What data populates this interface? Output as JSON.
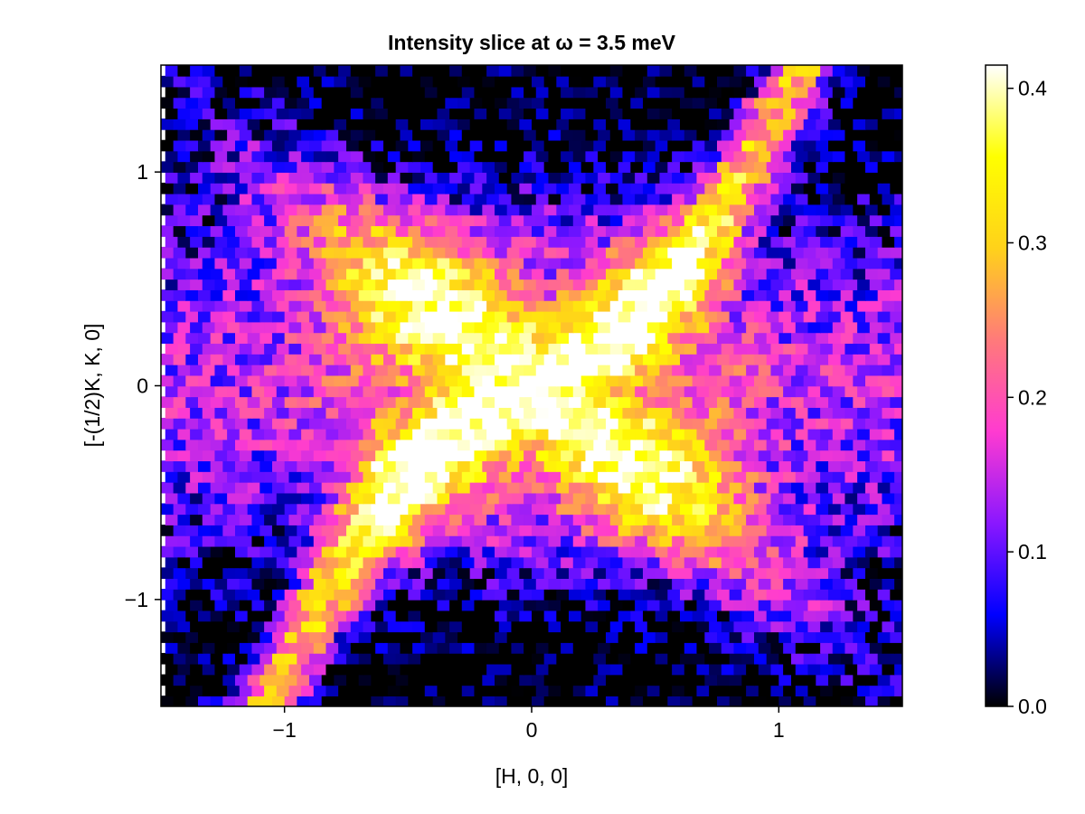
{
  "chart_data": {
    "type": "heatmap",
    "title": "Intensity slice at ω = 3.5 meV",
    "xlabel": "[H, 0, 0]",
    "ylabel": "[-(1/2)K, K, 0]",
    "xlim": [
      -1.5,
      1.5
    ],
    "ylim": [
      -1.5,
      1.5
    ],
    "x_ticks": [
      {
        "value": -1,
        "label": "−1"
      },
      {
        "value": 0,
        "label": "0"
      },
      {
        "value": 1,
        "label": "1"
      }
    ],
    "y_ticks": [
      {
        "value": -1,
        "label": "−1"
      },
      {
        "value": 0,
        "label": "0"
      },
      {
        "value": 1,
        "label": "1"
      }
    ],
    "colorbar": {
      "colormap": "plasma-like (black → blue → purple → pink → orange → yellow → white)",
      "stops": [
        "#000000",
        "#0000ff",
        "#8a17ff",
        "#ff3bd0",
        "#ff7a7a",
        "#ffd21a",
        "#ffff00",
        "#ffffff"
      ],
      "range": [
        0.0,
        0.415
      ],
      "ticks": [
        {
          "value": 0.0,
          "label": "0.0"
        },
        {
          "value": 0.1,
          "label": "0.1"
        },
        {
          "value": 0.2,
          "label": "0.2"
        },
        {
          "value": 0.3,
          "label": "0.3"
        },
        {
          "value": 0.4,
          "label": "0.4"
        }
      ]
    },
    "grid": false,
    "grid_resolution": {
      "nx": 60,
      "ny": 60
    },
    "pattern": "bright diagonal X-shaped bands of high intensity crossing near the origin, low intensity (blue) in the left, right, top-left, bottom-left and right regions, noisy speckle texture"
  }
}
